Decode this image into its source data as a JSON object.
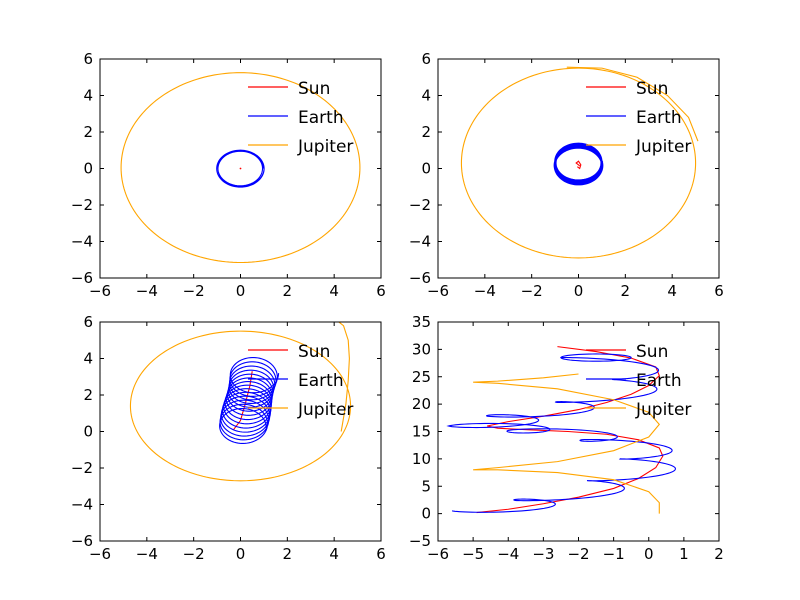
{
  "figure": {
    "background": "#ffffff"
  },
  "colors": {
    "sun": "#ff0000",
    "earth": "#0000ff",
    "jupiter": "#ffa500",
    "axes": "#000000"
  },
  "legend": {
    "entries": [
      "Sun",
      "Earth",
      "Jupiter"
    ],
    "placement": "top-right",
    "frameless": true
  },
  "chart_data": [
    {
      "type": "line",
      "title": "",
      "xlabel": "",
      "ylabel": "",
      "xlim": [
        -6,
        6
      ],
      "ylim": [
        -6,
        6
      ],
      "xticks": [
        -6,
        -4,
        -2,
        0,
        2,
        4,
        6
      ],
      "yticks": [
        -6,
        -4,
        -2,
        0,
        2,
        4,
        6
      ],
      "grid": false,
      "series": [
        {
          "name": "Sun",
          "color": "#ff0000",
          "kind": "dot",
          "x": [
            0
          ],
          "y": [
            0
          ]
        },
        {
          "name": "Earth",
          "color": "#0000ff",
          "kind": "circle",
          "cx": 0,
          "cy": 0,
          "r": 0.98,
          "turns": 3,
          "drift": [
            0,
            0
          ]
        },
        {
          "name": "Jupiter",
          "color": "#ffa500",
          "kind": "ellipse",
          "cx": 0,
          "cy": 0.05,
          "rx": 5.1,
          "ry": 5.2
        }
      ]
    },
    {
      "type": "line",
      "title": "",
      "xlabel": "",
      "ylabel": "",
      "xlim": [
        -6,
        6
      ],
      "ylim": [
        -6,
        6
      ],
      "xticks": [
        -6,
        -4,
        -2,
        0,
        2,
        4,
        6
      ],
      "yticks": [
        -6,
        -4,
        -2,
        0,
        2,
        4,
        6
      ],
      "grid": false,
      "series": [
        {
          "name": "Sun",
          "color": "#ff0000",
          "kind": "points",
          "x": [
            -0.05,
            0.05,
            0.1,
            0.0,
            -0.1,
            0.05
          ],
          "y": [
            0.1,
            0.0,
            0.2,
            0.4,
            0.3,
            0.15
          ]
        },
        {
          "name": "Earth",
          "color": "#0000ff",
          "kind": "circle",
          "cx": 0,
          "cy": 0.1,
          "r": 1.0,
          "turns": 10,
          "drift": [
            0,
            0.3
          ]
        },
        {
          "name": "Jupiter",
          "color": "#ffa500",
          "kind": "ellipse",
          "cx": 0,
          "cy": 0.3,
          "rx": 5.0,
          "ry": 5.2
        },
        {
          "name": "Jupiter",
          "color": "#ffa500",
          "kind": "points",
          "x": [
            -0.5,
            1.0,
            2.5,
            3.8,
            4.7,
            5.1
          ],
          "y": [
            5.55,
            5.5,
            5.0,
            4.0,
            2.8,
            1.5
          ]
        }
      ]
    },
    {
      "type": "line",
      "title": "",
      "xlabel": "",
      "ylabel": "",
      "xlim": [
        -6,
        6
      ],
      "ylim": [
        -6,
        6
      ],
      "xticks": [
        -6,
        -4,
        -2,
        0,
        2,
        4,
        6
      ],
      "yticks": [
        -6,
        -4,
        -2,
        0,
        2,
        4,
        6
      ],
      "grid": false,
      "series": [
        {
          "name": "Sun",
          "color": "#ff0000",
          "kind": "points",
          "x": [
            -0.3,
            0.0,
            0.2,
            0.4,
            0.5
          ],
          "y": [
            0.1,
            0.6,
            1.5,
            2.5,
            3.3
          ]
        },
        {
          "name": "Earth",
          "color": "#0000ff",
          "kind": "circle",
          "cx": 0.1,
          "cy": 0.2,
          "r": 1.0,
          "turns": 14,
          "drift": [
            0.5,
            3.0
          ]
        },
        {
          "name": "Jupiter",
          "color": "#ffa500",
          "kind": "ellipse",
          "cx": 0,
          "cy": 1.4,
          "rx": 4.7,
          "ry": 4.1
        },
        {
          "name": "Jupiter",
          "color": "#ffa500",
          "kind": "points",
          "x": [
            4.3,
            4.5,
            4.6,
            4.65,
            4.6,
            4.4,
            4.0
          ],
          "y": [
            0.0,
            1.5,
            2.8,
            4.0,
            5.0,
            5.8,
            6.2
          ]
        }
      ]
    },
    {
      "type": "line",
      "title": "",
      "xlabel": "",
      "ylabel": "",
      "xlim": [
        -6,
        2
      ],
      "ylim": [
        -5,
        35
      ],
      "xticks": [
        -6,
        -5,
        -4,
        -3,
        -2,
        -1,
        0,
        1,
        2
      ],
      "yticks": [
        -5,
        0,
        5,
        10,
        15,
        20,
        25,
        30,
        35
      ],
      "grid": false,
      "series": [
        {
          "name": "Sun",
          "color": "#ff0000",
          "kind": "points",
          "x": [
            -4.9,
            -4.0,
            -3.0,
            -2.0,
            -1.0,
            -0.3,
            0.2,
            0.4,
            0.3,
            -0.3,
            -1.2,
            -2.3,
            -3.4,
            -4.3,
            -4.6,
            -4.0,
            -3.0,
            -2.0,
            -1.2,
            -0.5,
            0.0,
            0.3,
            0.2,
            -0.5,
            -1.5,
            -2.6
          ],
          "y": [
            0.2,
            0.8,
            1.8,
            3.0,
            4.6,
            6.4,
            8.4,
            10.5,
            12.0,
            13.5,
            14.5,
            15.0,
            15.3,
            15.6,
            16.0,
            16.8,
            17.8,
            19.0,
            20.3,
            21.8,
            23.4,
            25.2,
            26.8,
            28.4,
            29.6,
            30.5
          ]
        },
        {
          "name": "Earth",
          "color": "#0000ff",
          "kind": "loops",
          "centers": [
            [
              -4.6,
              0.5
            ],
            [
              -2.8,
              2.4
            ],
            [
              -0.7,
              6.0
            ],
            [
              0.2,
              10.0
            ],
            [
              -0.9,
              13.5
            ],
            [
              -3.0,
              15.2
            ],
            [
              -4.7,
              16.0
            ],
            [
              -3.6,
              17.8
            ],
            [
              -1.6,
              20.3
            ],
            [
              0.0,
              24.5
            ],
            [
              -1.5,
              28.5
            ]
          ],
          "rx": 1.0,
          "ry": 1.2
        },
        {
          "name": "Jupiter",
          "color": "#ffa500",
          "kind": "points",
          "x": [
            0.3,
            0.3,
            0.0,
            -1.0,
            -2.6,
            -4.3,
            -5.0,
            -4.3,
            -2.6,
            -1.0,
            0.0,
            0.3,
            0.0,
            -1.0,
            -2.6,
            -4.3,
            -5.0,
            -4.3,
            -3.0,
            -2.0
          ],
          "y": [
            0.0,
            2.0,
            4.0,
            6.2,
            7.5,
            8.0,
            8.0,
            8.4,
            9.5,
            11.5,
            14.0,
            16.3,
            18.5,
            20.8,
            22.8,
            23.8,
            24.0,
            24.2,
            24.8,
            25.5
          ]
        }
      ]
    }
  ]
}
